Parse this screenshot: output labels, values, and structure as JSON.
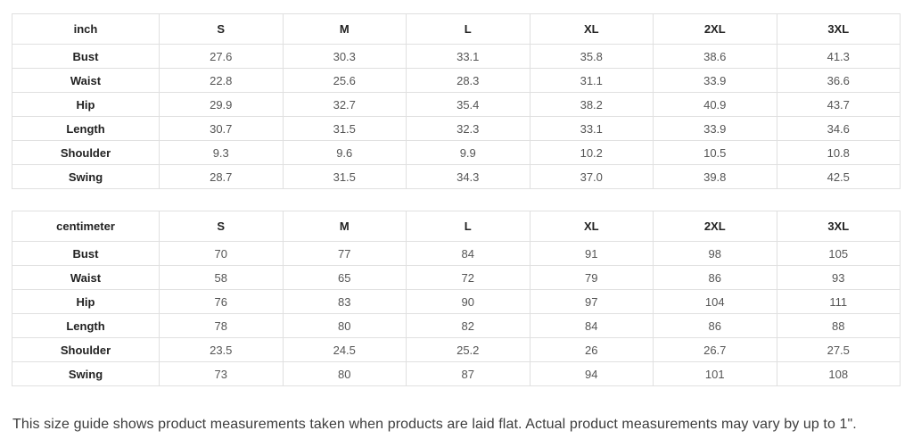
{
  "tables": [
    {
      "unit_label": "inch",
      "columns": [
        "S",
        "M",
        "L",
        "XL",
        "2XL",
        "3XL"
      ],
      "rows": [
        {
          "label": "Bust",
          "values": [
            "27.6",
            "30.3",
            "33.1",
            "35.8",
            "38.6",
            "41.3"
          ]
        },
        {
          "label": "Waist",
          "values": [
            "22.8",
            "25.6",
            "28.3",
            "31.1",
            "33.9",
            "36.6"
          ]
        },
        {
          "label": "Hip",
          "values": [
            "29.9",
            "32.7",
            "35.4",
            "38.2",
            "40.9",
            "43.7"
          ]
        },
        {
          "label": "Length",
          "values": [
            "30.7",
            "31.5",
            "32.3",
            "33.1",
            "33.9",
            "34.6"
          ]
        },
        {
          "label": "Shoulder",
          "values": [
            "9.3",
            "9.6",
            "9.9",
            "10.2",
            "10.5",
            "10.8"
          ]
        },
        {
          "label": "Swing",
          "values": [
            "28.7",
            "31.5",
            "34.3",
            "37.0",
            "39.8",
            "42.5"
          ]
        }
      ]
    },
    {
      "unit_label": "centimeter",
      "columns": [
        "S",
        "M",
        "L",
        "XL",
        "2XL",
        "3XL"
      ],
      "rows": [
        {
          "label": "Bust",
          "values": [
            "70",
            "77",
            "84",
            "91",
            "98",
            "105"
          ]
        },
        {
          "label": "Waist",
          "values": [
            "58",
            "65",
            "72",
            "79",
            "86",
            "93"
          ]
        },
        {
          "label": "Hip",
          "values": [
            "76",
            "83",
            "90",
            "97",
            "104",
            "111"
          ]
        },
        {
          "label": "Length",
          "values": [
            "78",
            "80",
            "82",
            "84",
            "86",
            "88"
          ]
        },
        {
          "label": "Shoulder",
          "values": [
            "23.5",
            "24.5",
            "25.2",
            "26",
            "26.7",
            "27.5"
          ]
        },
        {
          "label": "Swing",
          "values": [
            "73",
            "80",
            "87",
            "94",
            "101",
            "108"
          ]
        }
      ]
    }
  ],
  "footer": {
    "note": "This size guide shows product measurements taken when products are laid flat. Actual product measurements may vary by up to 1\"."
  },
  "colors": {
    "border": "#e0e0e0",
    "header_text": "#222222",
    "value_text": "#555555",
    "note_text": "#3d3d3d",
    "background": "#ffffff"
  }
}
